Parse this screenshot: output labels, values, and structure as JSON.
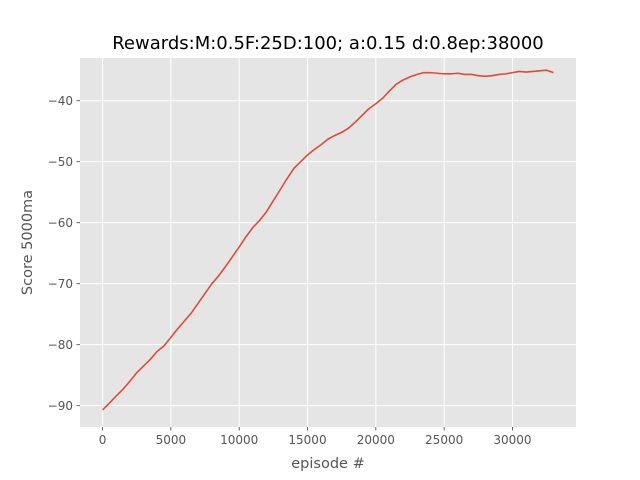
{
  "chart_data": {
    "type": "line",
    "title": "Rewards:M:0.5F:25D:100; a:0.15 d:0.8ep:38000",
    "xlabel": "episode #",
    "ylabel": "Score 5000ma",
    "xlim": [
      -1650,
      34650
    ],
    "ylim": [
      -93.5,
      -33.0
    ],
    "x_ticks": [
      0,
      5000,
      10000,
      15000,
      20000,
      25000,
      30000
    ],
    "x_tick_labels": [
      "0",
      "5000",
      "10000",
      "15000",
      "20000",
      "25000",
      "30000"
    ],
    "y_ticks": [
      -90,
      -80,
      -70,
      -60,
      -50,
      -40
    ],
    "y_tick_labels": [
      "−90",
      "−80",
      "−70",
      "−60",
      "−50",
      "−40"
    ],
    "grid": true,
    "background_color": "#e5e5e5",
    "series": [
      {
        "color": "#e24a33",
        "x": [
          0,
          500,
          1000,
          1500,
          2000,
          2500,
          3000,
          3500,
          4000,
          4500,
          5000,
          5500,
          6000,
          6500,
          7000,
          7500,
          8000,
          8500,
          9000,
          9500,
          10000,
          10500,
          11000,
          11500,
          12000,
          12500,
          13000,
          13500,
          14000,
          14500,
          15000,
          15500,
          16000,
          16500,
          17000,
          17500,
          18000,
          18500,
          19000,
          19500,
          20000,
          20500,
          21000,
          21500,
          22000,
          22500,
          23000,
          23500,
          24000,
          24500,
          25000,
          25500,
          26000,
          26500,
          27000,
          27500,
          28000,
          28500,
          29000,
          29500,
          30000,
          30500,
          31000,
          31500,
          32000,
          32500,
          33000
        ],
        "y": [
          -90.7,
          -89.6,
          -88.4,
          -87.3,
          -86.0,
          -84.6,
          -83.5,
          -82.4,
          -81.1,
          -80.2,
          -78.8,
          -77.4,
          -76.1,
          -74.8,
          -73.2,
          -71.6,
          -70.0,
          -68.7,
          -67.2,
          -65.6,
          -64.0,
          -62.3,
          -60.8,
          -59.6,
          -58.2,
          -56.4,
          -54.6,
          -52.8,
          -51.1,
          -50.0,
          -48.9,
          -48.0,
          -47.2,
          -46.3,
          -45.7,
          -45.2,
          -44.5,
          -43.5,
          -42.4,
          -41.3,
          -40.5,
          -39.6,
          -38.4,
          -37.3,
          -36.6,
          -36.1,
          -35.7,
          -35.4,
          -35.4,
          -35.5,
          -35.6,
          -35.6,
          -35.5,
          -35.7,
          -35.7,
          -35.9,
          -36.0,
          -35.9,
          -35.7,
          -35.6,
          -35.4,
          -35.2,
          -35.3,
          -35.2,
          -35.1,
          -35.0,
          -35.4
        ]
      }
    ]
  }
}
